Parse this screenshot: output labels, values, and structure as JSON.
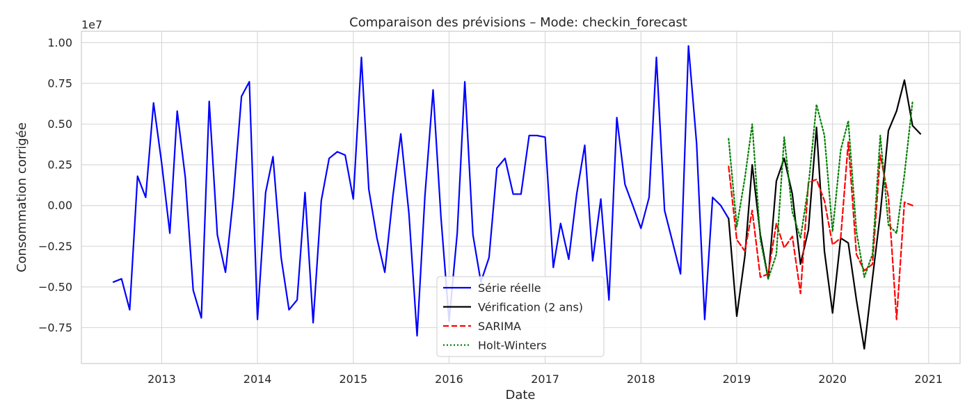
{
  "chart_data": {
    "type": "line",
    "title": "Comparaison des prévisions – Mode: checkin_forecast",
    "xlabel": "Date",
    "ylabel": "Consommation corrigée",
    "y_offset_label": "1e7",
    "xlim": [
      "2012-03-01",
      "2021-05-01"
    ],
    "ylim": [
      -0.97,
      1.07
    ],
    "x_ticks": [
      "2013-01-01",
      "2014-01-01",
      "2015-01-01",
      "2016-01-01",
      "2017-01-01",
      "2018-01-01",
      "2019-01-01",
      "2020-01-01",
      "2021-01-01"
    ],
    "x_tick_labels": [
      "2013",
      "2014",
      "2015",
      "2016",
      "2017",
      "2018",
      "2019",
      "2020",
      "2021"
    ],
    "y_ticks": [
      -0.75,
      -0.5,
      -0.25,
      0.0,
      0.25,
      0.5,
      0.75,
      1.0
    ],
    "y_tick_labels": [
      "−0.75",
      "−0.50",
      "−0.25",
      "0.00",
      "0.25",
      "0.50",
      "0.75",
      "1.00"
    ],
    "grid": true,
    "legend_position": "bottom-center",
    "series": [
      {
        "name": "Série réelle",
        "color": "#0000ff",
        "style": "solid",
        "x": [
          "2012-07",
          "2012-08",
          "2012-09",
          "2012-10",
          "2012-11",
          "2012-12",
          "2013-01",
          "2013-02",
          "2013-03",
          "2013-04",
          "2013-05",
          "2013-06",
          "2013-07",
          "2013-08",
          "2013-09",
          "2013-10",
          "2013-11",
          "2013-12",
          "2014-01",
          "2014-02",
          "2014-03",
          "2014-04",
          "2014-05",
          "2014-06",
          "2014-07",
          "2014-08",
          "2014-09",
          "2014-10",
          "2014-11",
          "2014-12",
          "2015-01",
          "2015-02",
          "2015-03",
          "2015-04",
          "2015-05",
          "2015-06",
          "2015-07",
          "2015-08",
          "2015-09",
          "2015-10",
          "2015-11",
          "2015-12",
          "2016-01",
          "2016-02",
          "2016-03",
          "2016-04",
          "2016-05",
          "2016-06",
          "2016-07",
          "2016-08",
          "2016-09",
          "2016-10",
          "2016-11",
          "2016-12",
          "2017-01",
          "2017-02",
          "2017-03",
          "2017-04",
          "2017-05",
          "2017-06",
          "2017-07",
          "2017-08",
          "2017-09",
          "2017-10",
          "2017-11",
          "2017-12",
          "2018-01",
          "2018-02",
          "2018-03",
          "2018-04",
          "2018-05",
          "2018-06",
          "2018-07",
          "2018-08",
          "2018-09",
          "2018-10",
          "2018-11",
          "2018-12"
        ],
        "values": [
          -0.47,
          -0.45,
          -0.64,
          0.18,
          0.05,
          0.63,
          0.26,
          -0.17,
          0.58,
          0.17,
          -0.52,
          -0.69,
          0.64,
          -0.18,
          -0.41,
          0.05,
          0.67,
          0.76,
          -0.7,
          0.08,
          0.3,
          -0.32,
          -0.64,
          -0.58,
          0.08,
          -0.72,
          0.03,
          0.29,
          0.33,
          0.31,
          0.04,
          0.91,
          0.1,
          -0.2,
          -0.41,
          0.06,
          0.44,
          -0.05,
          -0.8,
          0.06,
          0.71,
          -0.07,
          -0.71,
          -0.17,
          0.76,
          -0.18,
          -0.47,
          -0.32,
          0.23,
          0.29,
          0.07,
          0.07,
          0.43,
          0.43,
          0.42,
          -0.38,
          -0.11,
          -0.33,
          0.07,
          0.37,
          -0.34,
          0.04,
          -0.58,
          0.54,
          0.13,
          0.0,
          -0.14,
          0.05,
          0.91,
          -0.03,
          -0.22,
          -0.42,
          0.98,
          0.38,
          -0.7,
          0.05,
          0.0,
          -0.08
        ]
      },
      {
        "name": "Vérification (2 ans)",
        "color": "#000000",
        "style": "solid",
        "x": [
          "2018-12",
          "2019-01",
          "2019-02",
          "2019-03",
          "2019-04",
          "2019-05",
          "2019-06",
          "2019-07",
          "2019-08",
          "2019-09",
          "2019-10",
          "2019-11",
          "2019-12",
          "2020-01",
          "2020-02",
          "2020-03",
          "2020-04",
          "2020-05",
          "2020-06",
          "2020-07",
          "2020-08",
          "2020-09",
          "2020-10",
          "2020-11",
          "2020-12"
        ],
        "values": [
          -0.08,
          -0.68,
          -0.31,
          0.25,
          -0.18,
          -0.45,
          0.15,
          0.29,
          0.07,
          -0.36,
          -0.15,
          0.48,
          -0.28,
          -0.66,
          -0.2,
          -0.23,
          -0.58,
          -0.88,
          -0.45,
          -0.05,
          0.46,
          0.58,
          0.77,
          0.49,
          0.44
        ]
      },
      {
        "name": "SARIMA",
        "color": "#ff0000",
        "style": "dashed",
        "x": [
          "2018-12",
          "2019-01",
          "2019-02",
          "2019-03",
          "2019-04",
          "2019-05",
          "2019-06",
          "2019-07",
          "2019-08",
          "2019-09",
          "2019-10",
          "2019-11",
          "2019-12",
          "2020-01",
          "2020-02",
          "2020-03",
          "2020-04",
          "2020-05",
          "2020-06",
          "2020-07",
          "2020-08",
          "2020-09",
          "2020-10",
          "2020-11"
        ],
        "values": [
          0.24,
          -0.21,
          -0.28,
          -0.03,
          -0.44,
          -0.42,
          -0.11,
          -0.26,
          -0.19,
          -0.54,
          0.14,
          0.16,
          0.03,
          -0.24,
          -0.2,
          0.39,
          -0.3,
          -0.4,
          -0.36,
          0.31,
          0.05,
          -0.7,
          0.02,
          0.0
        ]
      },
      {
        "name": "Holt-Winters",
        "color": "#008000",
        "style": "dotted",
        "x": [
          "2018-12",
          "2019-01",
          "2019-02",
          "2019-03",
          "2019-04",
          "2019-05",
          "2019-06",
          "2019-07",
          "2019-08",
          "2019-09",
          "2019-10",
          "2019-11",
          "2019-12",
          "2020-01",
          "2020-02",
          "2020-03",
          "2020-04",
          "2020-05",
          "2020-06",
          "2020-07",
          "2020-08",
          "2020-09",
          "2020-10",
          "2020-11"
        ],
        "values": [
          0.41,
          -0.13,
          0.17,
          0.5,
          -0.21,
          -0.45,
          -0.3,
          0.42,
          -0.04,
          -0.2,
          0.12,
          0.62,
          0.43,
          -0.16,
          0.34,
          0.52,
          -0.16,
          -0.44,
          -0.3,
          0.43,
          -0.12,
          -0.17,
          0.19,
          0.64
        ]
      }
    ]
  }
}
